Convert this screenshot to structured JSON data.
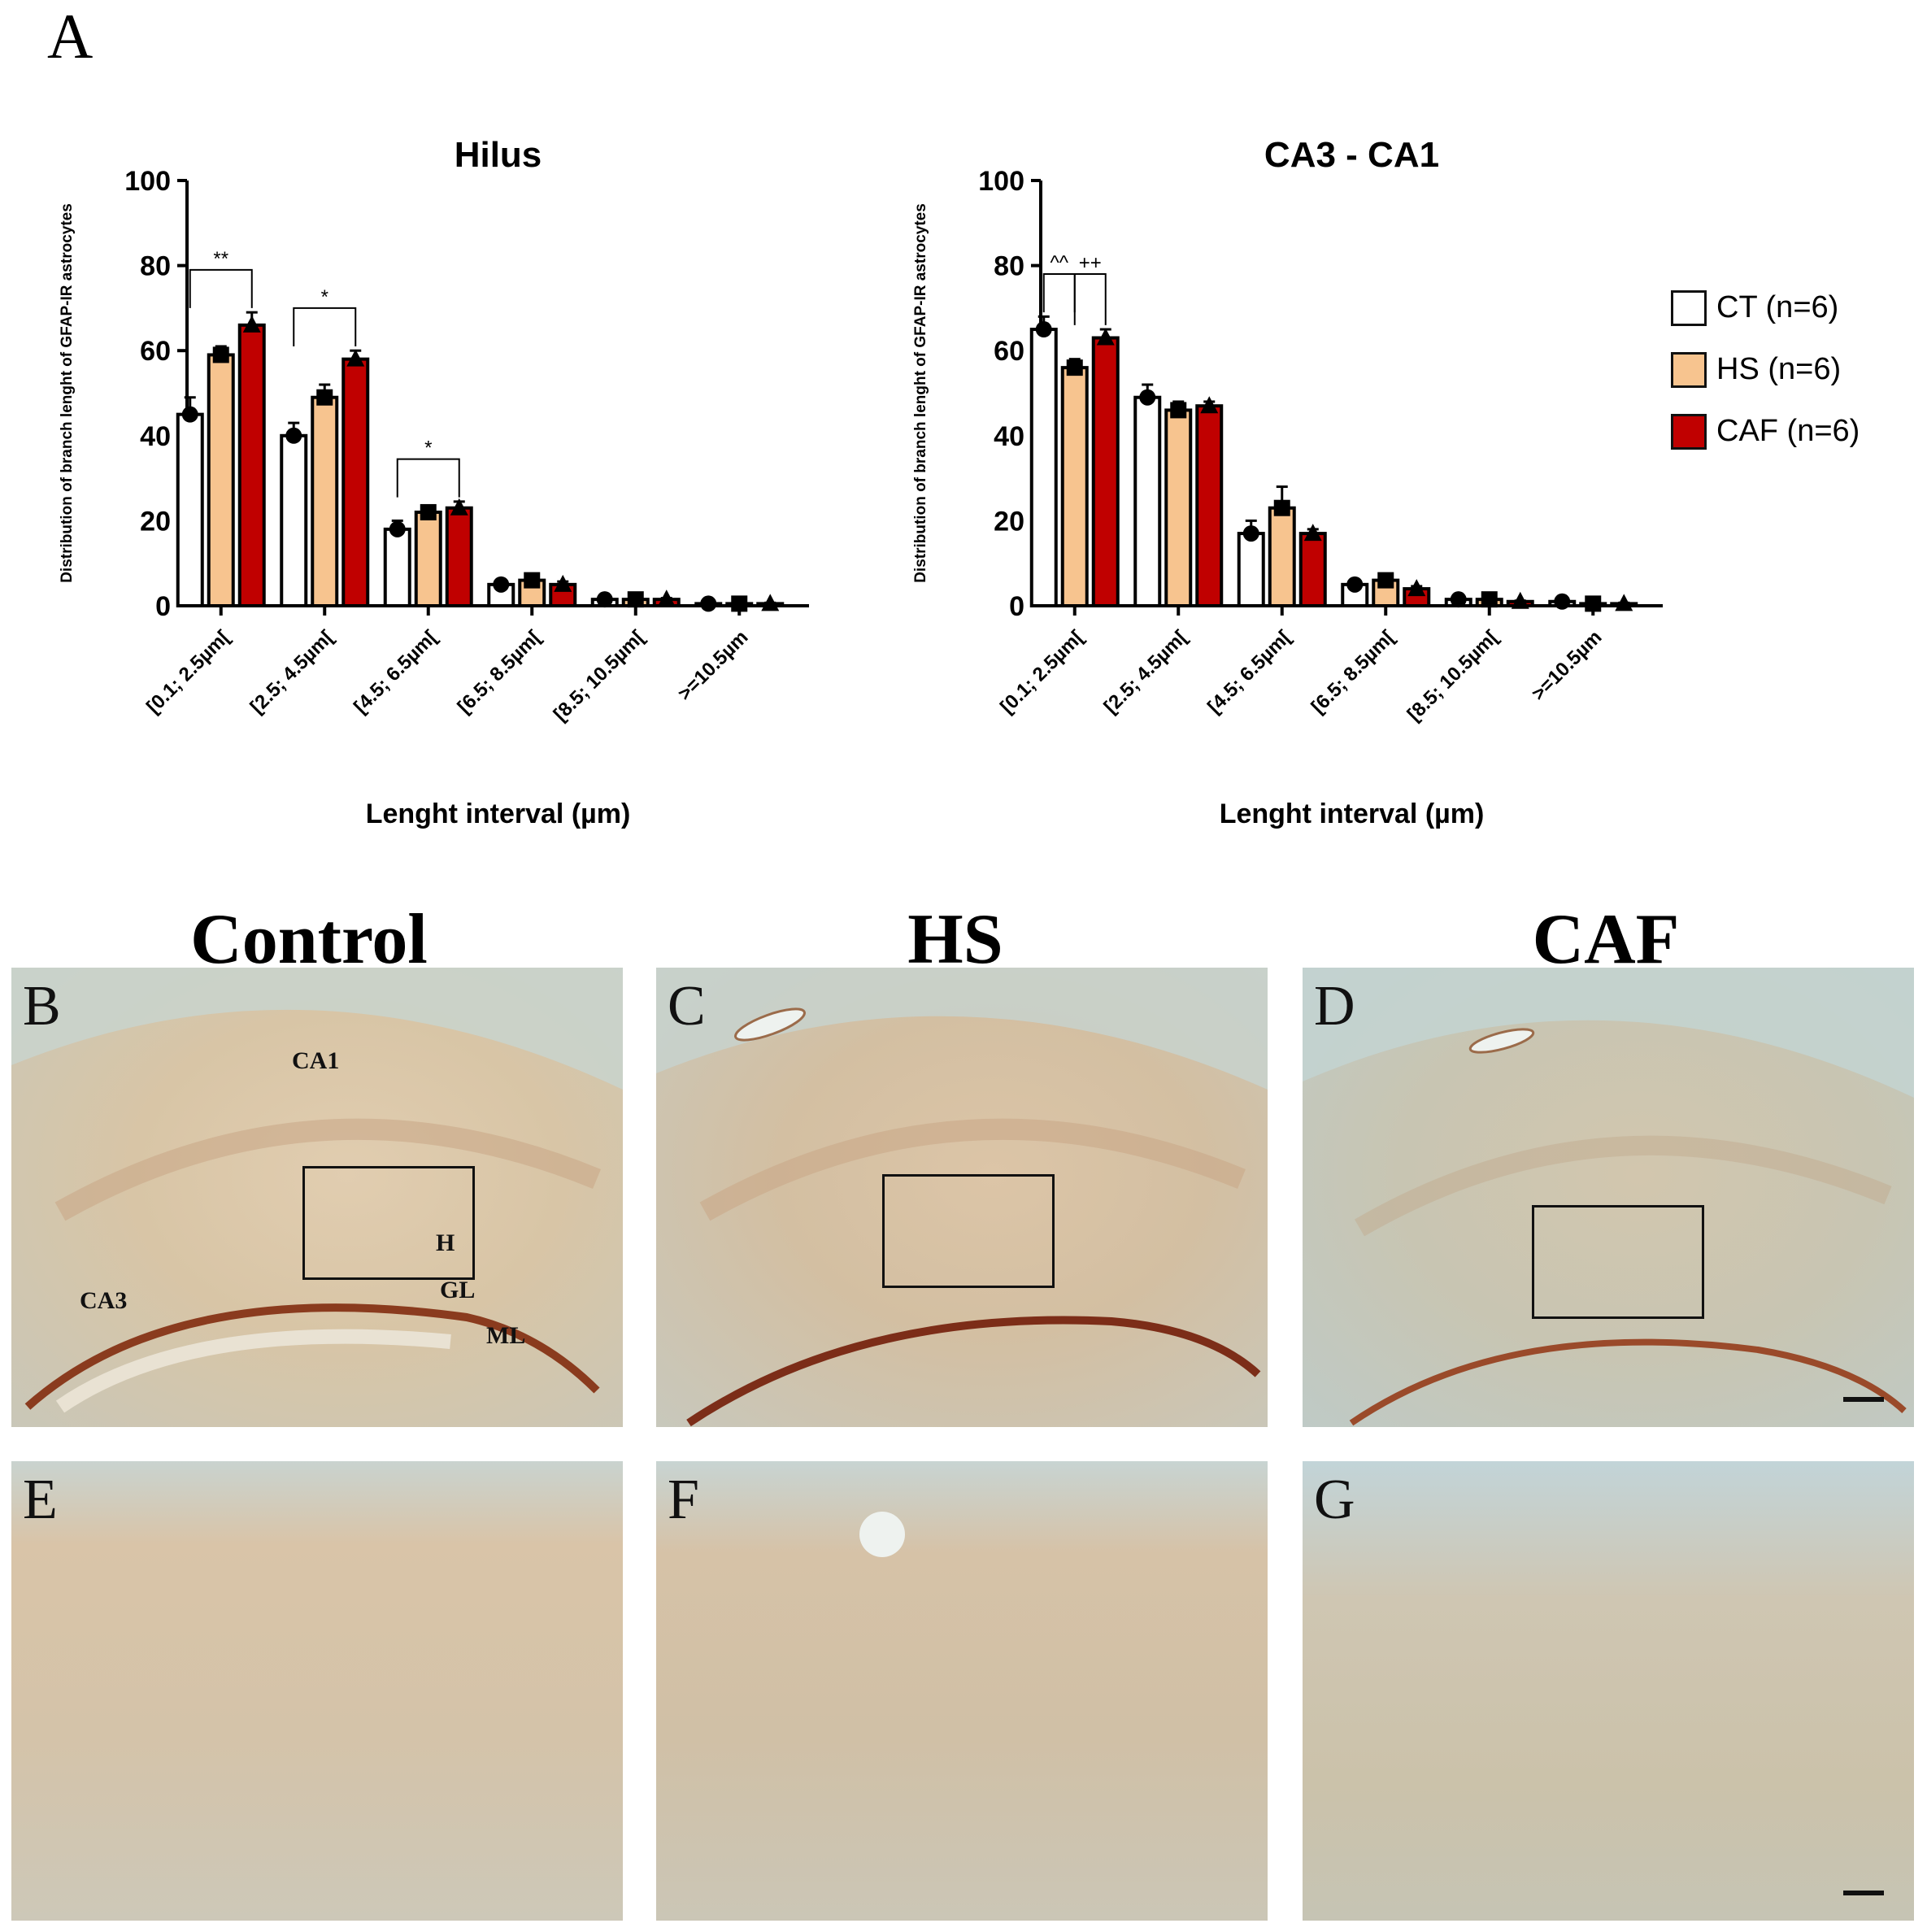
{
  "figure": {
    "panel_a_label": "A",
    "column_headers": [
      "Control",
      "HS",
      "CAF"
    ],
    "micrographs": [
      {
        "id": "B",
        "label": "B",
        "regions": [
          "CA1",
          "H",
          "GL",
          "CA3",
          "ML"
        ],
        "scale_bar": true
      },
      {
        "id": "C",
        "label": "C",
        "regions": [],
        "scale_bar": false
      },
      {
        "id": "D",
        "label": "D",
        "regions": [],
        "scale_bar": true
      },
      {
        "id": "E",
        "label": "E",
        "regions": [],
        "scale_bar": false
      },
      {
        "id": "F",
        "label": "F",
        "regions": [],
        "scale_bar": false
      },
      {
        "id": "G",
        "label": "G",
        "regions": [],
        "scale_bar": true
      }
    ]
  },
  "legend": {
    "placement": "right",
    "items": [
      {
        "label": "CT (n=6)",
        "color": "#ffffff"
      },
      {
        "label": "HS (n=6)",
        "color": "#f7c48f"
      },
      {
        "label": "CAF (n=6)",
        "color": "#c00000"
      }
    ]
  },
  "chart_data": [
    {
      "type": "bar",
      "title": "Hilus",
      "ylabel": "Distribution of branch lenght of GFAP-IR astrocytes",
      "xlabel": "Lenght interval (µm)",
      "ylim": [
        0,
        100
      ],
      "yticks": [
        0,
        20,
        40,
        60,
        80,
        100
      ],
      "categories": [
        "[0.1; 2.5µm[",
        "[2.5; 4.5µm[",
        "[4.5; 6.5µm[",
        "[6.5; 8.5µm[",
        "[8.5; 10.5µm[",
        ">=10.5µm"
      ],
      "series": [
        {
          "name": "CT (n=6)",
          "values": [
            45,
            40,
            18,
            5,
            1.5,
            0.5
          ],
          "errors": [
            4,
            3,
            2,
            0.8,
            0.3,
            0.2
          ],
          "color": "#ffffff"
        },
        {
          "name": "HS (n=6)",
          "values": [
            59,
            49,
            22,
            6,
            1.5,
            0.5
          ],
          "errors": [
            2,
            3,
            1.5,
            0.6,
            0.3,
            0.2
          ],
          "color": "#f7c48f"
        },
        {
          "name": "CAF (n=6)",
          "values": [
            66,
            58,
            23,
            5,
            1.5,
            0.5
          ],
          "errors": [
            3,
            2,
            1.5,
            0.7,
            0.3,
            0.2
          ],
          "color": "#c00000"
        }
      ],
      "significance": [
        {
          "category": 0,
          "from": 0,
          "to": 2,
          "label": "**"
        },
        {
          "category": 1,
          "from": 0,
          "to": 2,
          "label": "*"
        },
        {
          "category": 2,
          "from": 0,
          "to": 2,
          "label": "*"
        }
      ]
    },
    {
      "type": "bar",
      "title": "CA3 - CA1",
      "ylabel": "Distribution of branch lenght of GFAP-IR astrocytes",
      "xlabel": "Lenght interval (µm)",
      "ylim": [
        0,
        100
      ],
      "yticks": [
        0,
        20,
        40,
        60,
        80,
        100
      ],
      "categories": [
        "[0.1; 2.5µm[",
        "[2.5; 4.5µm[",
        "[4.5; 6.5µm[",
        "[6.5; 8.5µm[",
        "[8.5; 10.5µm[",
        ">=10.5µm"
      ],
      "series": [
        {
          "name": "CT (n=6)",
          "values": [
            65,
            49,
            17,
            5,
            1.5,
            1
          ],
          "errors": [
            3,
            3,
            3,
            0.8,
            0.3,
            0.2
          ],
          "color": "#ffffff"
        },
        {
          "name": "HS (n=6)",
          "values": [
            56,
            46,
            23,
            6,
            1.5,
            0.5
          ],
          "errors": [
            2,
            2,
            5,
            0.6,
            0.3,
            0.2
          ],
          "color": "#f7c48f"
        },
        {
          "name": "CAF (n=6)",
          "values": [
            63,
            47,
            17,
            4,
            1,
            0.5
          ],
          "errors": [
            2,
            1,
            1,
            0.6,
            0.2,
            0.2
          ],
          "color": "#c00000"
        }
      ],
      "significance": [
        {
          "category": 0,
          "from": 0,
          "to": 1,
          "label": "^^"
        },
        {
          "category": 0,
          "from": 1,
          "to": 2,
          "label": "++"
        }
      ]
    }
  ]
}
